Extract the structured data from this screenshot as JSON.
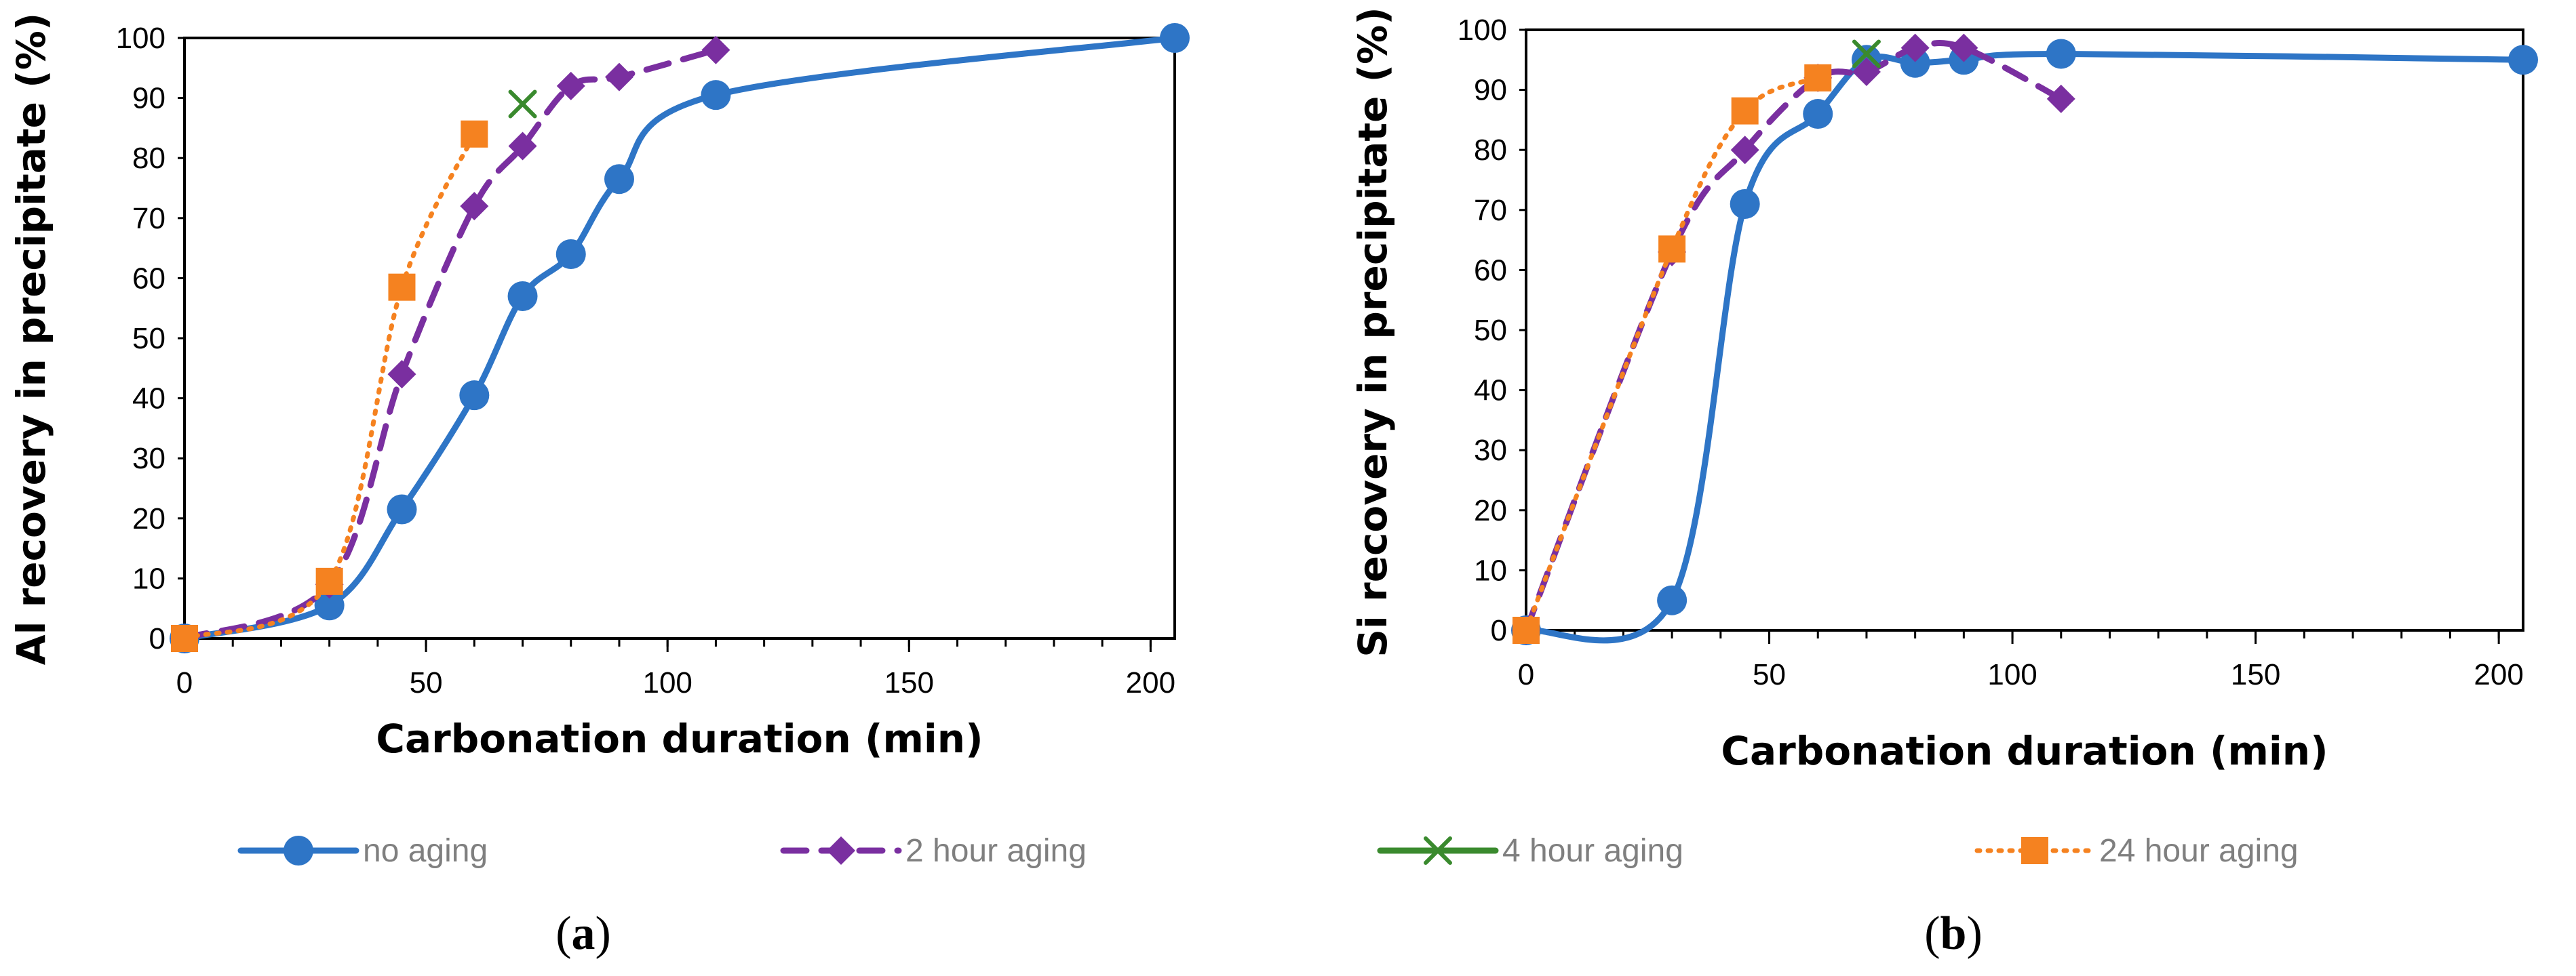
{
  "chart_data": [
    {
      "type": "line",
      "panel_label": "a",
      "xlabel": "Carbonation duration (min)",
      "ylabel": "Al recovery in precipitate (%)",
      "xlim": [
        0,
        205
      ],
      "ylim": [
        0,
        100
      ],
      "xticks": [
        0,
        50,
        100,
        150,
        200
      ],
      "yticks": [
        0,
        10,
        20,
        30,
        40,
        50,
        60,
        70,
        80,
        90,
        100
      ],
      "series": [
        {
          "name": "no aging",
          "x": [
            0,
            30,
            45,
            60,
            70,
            80,
            90,
            110,
            205
          ],
          "values": [
            0,
            5.5,
            21.5,
            40.5,
            57,
            64,
            76.5,
            90.5,
            100
          ]
        },
        {
          "name": "2 hour aging",
          "x": [
            0,
            30,
            45,
            60,
            70,
            80,
            90,
            110
          ],
          "values": [
            0,
            9,
            44,
            72,
            82,
            92,
            93.5,
            98
          ]
        },
        {
          "name": "4 hour aging",
          "x": [
            70
          ],
          "values": [
            89
          ]
        },
        {
          "name": "24 hour aging",
          "x": [
            0,
            30,
            45,
            60
          ],
          "values": [
            0,
            9.5,
            58.5,
            84
          ]
        }
      ]
    },
    {
      "type": "line",
      "panel_label": "b",
      "xlabel": "Carbonation duration (min)",
      "ylabel": "Si recovery in precipitate (%)",
      "xlim": [
        0,
        205
      ],
      "ylim": [
        0,
        100
      ],
      "xticks": [
        0,
        50,
        100,
        150,
        200
      ],
      "yticks": [
        0,
        10,
        20,
        30,
        40,
        50,
        60,
        70,
        80,
        90,
        100
      ],
      "series": [
        {
          "name": "no aging",
          "x": [
            0,
            30,
            45,
            60,
            70,
            80,
            90,
            110,
            205
          ],
          "values": [
            0,
            5,
            71,
            86,
            95,
            94.5,
            95,
            96,
            95
          ]
        },
        {
          "name": "2 hour aging",
          "x": [
            0,
            30,
            45,
            60,
            70,
            80,
            90,
            110
          ],
          "values": [
            0,
            63,
            80,
            92,
            93,
            97,
            97,
            88.5
          ]
        },
        {
          "name": "4 hour aging",
          "x": [
            70
          ],
          "values": [
            96
          ]
        },
        {
          "name": "24 hour aging",
          "x": [
            0,
            30,
            45,
            60
          ],
          "values": [
            0,
            63.5,
            86.5,
            92
          ]
        }
      ]
    }
  ],
  "legend": {
    "items": [
      {
        "label": "no aging",
        "color": "#2e75c6",
        "marker": "circle",
        "dash": "solid"
      },
      {
        "label": "2 hour aging",
        "color": "#7a2fa0",
        "marker": "diamond",
        "dash": "dashed"
      },
      {
        "label": "4 hour aging",
        "color": "#3a8a2e",
        "marker": "x",
        "dash": "solid"
      },
      {
        "label": "24 hour aging",
        "color": "#f58220",
        "marker": "square",
        "dash": "dotted"
      }
    ]
  }
}
